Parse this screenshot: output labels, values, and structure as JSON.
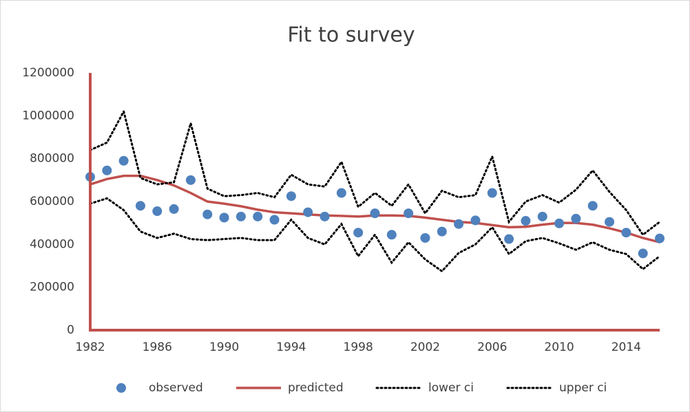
{
  "chart_data": {
    "type": "line",
    "title": "Fit to survey",
    "x": [
      1982,
      1983,
      1984,
      1985,
      1986,
      1987,
      1988,
      1989,
      1990,
      1991,
      1992,
      1993,
      1994,
      1995,
      1996,
      1997,
      1998,
      1999,
      2000,
      2001,
      2002,
      2003,
      2004,
      2005,
      2006,
      2007,
      2008,
      2009,
      2010,
      2011,
      2012,
      2013,
      2014,
      2015,
      2016
    ],
    "xlim": [
      1982,
      2016
    ],
    "xticks": [
      1982,
      1986,
      1990,
      1994,
      1998,
      2002,
      2006,
      2010,
      2014
    ],
    "ylim": [
      0,
      1200000
    ],
    "yticks": [
      0,
      200000,
      400000,
      600000,
      800000,
      1000000,
      1200000
    ],
    "grid": false,
    "legend": "bottom",
    "axis_color": "#c0504d",
    "series": [
      {
        "name": "observed",
        "color": "#4f81bd",
        "marker": "circle",
        "values": [
          715000,
          745000,
          790000,
          580000,
          555000,
          565000,
          700000,
          540000,
          525000,
          530000,
          530000,
          515000,
          625000,
          550000,
          530000,
          640000,
          455000,
          545000,
          445000,
          545000,
          430000,
          460000,
          495000,
          512000,
          640000,
          425000,
          510000,
          530000,
          498000,
          520000,
          580000,
          505000,
          455000,
          358000,
          428000
        ]
      },
      {
        "name": "predicted",
        "color": "#c0504d",
        "dash": "solid",
        "values": [
          680000,
          705000,
          720000,
          720000,
          700000,
          675000,
          640000,
          600000,
          590000,
          578000,
          562000,
          550000,
          545000,
          540000,
          535000,
          533000,
          530000,
          535000,
          535000,
          533000,
          525000,
          515000,
          505000,
          500000,
          490000,
          480000,
          482000,
          492000,
          500000,
          500000,
          492000,
          475000,
          455000,
          430000,
          410000
        ]
      },
      {
        "name": "lower ci",
        "color": "#000000",
        "dash": "dotted",
        "values": [
          590000,
          615000,
          560000,
          460000,
          430000,
          450000,
          425000,
          420000,
          425000,
          430000,
          420000,
          420000,
          515000,
          430000,
          400000,
          495000,
          345000,
          445000,
          315000,
          410000,
          330000,
          275000,
          360000,
          400000,
          480000,
          355000,
          415000,
          430000,
          405000,
          375000,
          410000,
          375000,
          355000,
          285000,
          345000
        ]
      },
      {
        "name": "upper ci",
        "color": "#000000",
        "dash": "dotted",
        "values": [
          840000,
          875000,
          1020000,
          710000,
          680000,
          690000,
          965000,
          660000,
          625000,
          630000,
          640000,
          620000,
          725000,
          680000,
          670000,
          785000,
          575000,
          640000,
          580000,
          680000,
          545000,
          650000,
          620000,
          630000,
          810000,
          505000,
          600000,
          630000,
          595000,
          655000,
          745000,
          645000,
          560000,
          445000,
          505000
        ]
      }
    ]
  }
}
